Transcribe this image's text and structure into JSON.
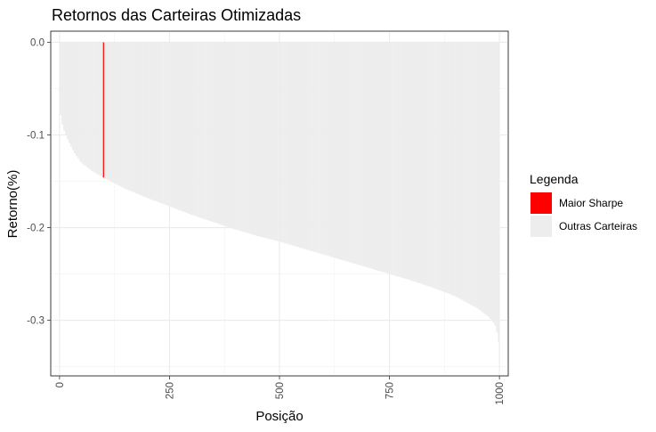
{
  "chart_data": {
    "type": "bar",
    "title": "Retornos das Carteiras Otimizadas",
    "xlabel": "Posição",
    "ylabel": "Retorno(%)",
    "xlim": [
      -20,
      1020
    ],
    "ylim": [
      -0.36,
      0.012
    ],
    "x_ticks": [
      0,
      250,
      500,
      750,
      1000
    ],
    "x_tick_labels": [
      "0",
      "250",
      "500",
      "750",
      "1000"
    ],
    "y_ticks": [
      0.0,
      -0.1,
      -0.2,
      -0.3
    ],
    "y_tick_labels": [
      "0.0",
      "-0.1",
      "-0.2",
      "-0.3"
    ],
    "grid": true,
    "legend": {
      "title": "Legenda",
      "placement": "right",
      "entries": [
        {
          "label": "Maior Sharpe",
          "color": "#ff0000"
        },
        {
          "label": "Outras Carteiras",
          "color": "#ededed"
        }
      ]
    },
    "n_positions": 1000,
    "highlight_position": 100,
    "highlight_value": -0.146,
    "sorted_value_curve": {
      "x": [
        1,
        5,
        10,
        20,
        35,
        50,
        75,
        100,
        150,
        200,
        250,
        300,
        350,
        400,
        450,
        500,
        550,
        600,
        650,
        700,
        750,
        800,
        850,
        900,
        950,
        975,
        990,
        995,
        1000
      ],
      "y": [
        -0.072,
        -0.085,
        -0.094,
        -0.106,
        -0.12,
        -0.13,
        -0.139,
        -0.146,
        -0.158,
        -0.168,
        -0.177,
        -0.186,
        -0.194,
        -0.202,
        -0.209,
        -0.215,
        -0.222,
        -0.229,
        -0.236,
        -0.243,
        -0.25,
        -0.257,
        -0.265,
        -0.274,
        -0.287,
        -0.296,
        -0.304,
        -0.313,
        -0.326
      ]
    }
  }
}
